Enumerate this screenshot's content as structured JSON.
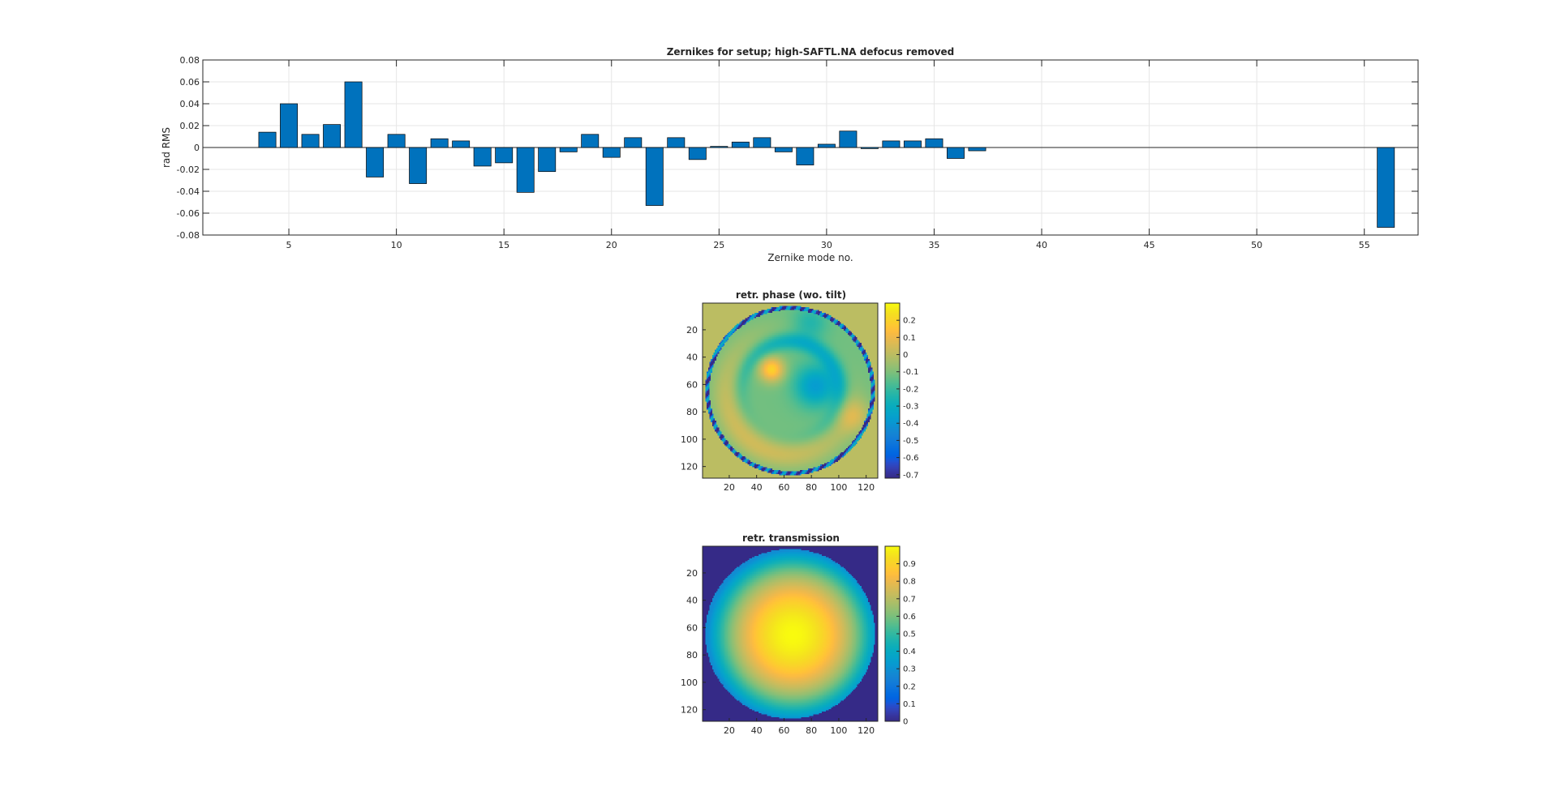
{
  "chart_data": [
    {
      "type": "bar",
      "title": "Zernikes for setup; high-SAFTL.NA defocus removed",
      "xlabel": "Zernike mode no.",
      "ylabel": "rad RMS",
      "xlim": [
        1,
        57.5
      ],
      "ylim": [
        -0.08,
        0.08
      ],
      "xticks": [
        5,
        10,
        15,
        20,
        25,
        30,
        35,
        40,
        45,
        50,
        55
      ],
      "yticks": [
        -0.08,
        -0.06,
        -0.04,
        -0.02,
        0,
        0.02,
        0.04,
        0.06,
        0.08
      ],
      "ytick_labels": [
        "-0.08",
        "-0.06",
        "-0.04",
        "-0.02",
        "0",
        "0.02",
        "0.04",
        "0.06",
        "0.08"
      ],
      "grid": true,
      "bar_color": "#0072BD",
      "x": [
        4,
        5,
        6,
        7,
        8,
        9,
        10,
        11,
        12,
        13,
        14,
        15,
        16,
        17,
        18,
        19,
        20,
        21,
        22,
        23,
        24,
        25,
        26,
        27,
        28,
        29,
        30,
        31,
        32,
        33,
        34,
        35,
        36,
        37,
        56
      ],
      "values": [
        0.014,
        0.04,
        0.012,
        0.021,
        0.06,
        -0.027,
        0.012,
        -0.033,
        0.008,
        0.006,
        -0.017,
        -0.014,
        -0.041,
        -0.022,
        -0.004,
        0.012,
        -0.009,
        0.009,
        -0.053,
        0.009,
        -0.011,
        0.001,
        0.005,
        0.009,
        -0.004,
        -0.016,
        0.003,
        0.015,
        -0.001,
        0.006,
        0.006,
        0.008,
        -0.01,
        -0.003,
        -0.073
      ]
    },
    {
      "type": "heatmap",
      "title": "retr. phase (wo. tilt)",
      "colormap": "parula",
      "xlim": [
        1,
        128
      ],
      "ylim": [
        1,
        128
      ],
      "xticks": [
        20,
        40,
        60,
        80,
        100,
        120
      ],
      "yticks": [
        20,
        40,
        60,
        80,
        100,
        120
      ],
      "clim": [
        -0.72,
        0.3
      ],
      "colorbar_ticks": [
        0.2,
        0.1,
        0,
        -0.1,
        -0.2,
        -0.3,
        -0.4,
        -0.5,
        -0.6,
        -0.7
      ],
      "colorbar_labels": [
        "0.2",
        "0.1",
        "0",
        "-0.1",
        "-0.2",
        "-0.3",
        "-0.4",
        "-0.5",
        "-0.6",
        "-0.7"
      ],
      "background_value": 0.0,
      "aperture_radius": 62
    },
    {
      "type": "heatmap",
      "title": "retr. transmission",
      "colormap": "parula",
      "xlim": [
        1,
        128
      ],
      "ylim": [
        1,
        128
      ],
      "xticks": [
        20,
        40,
        60,
        80,
        100,
        120
      ],
      "yticks": [
        20,
        40,
        60,
        80,
        100,
        120
      ],
      "clim": [
        0,
        1
      ],
      "colorbar_ticks": [
        0.9,
        0.8,
        0.7,
        0.6,
        0.5,
        0.4,
        0.3,
        0.2,
        0.1,
        0
      ],
      "colorbar_labels": [
        "0.9",
        "0.8",
        "0.7",
        "0.6",
        "0.5",
        "0.4",
        "0.3",
        "0.2",
        "0.1",
        "0"
      ],
      "background_value": 0.0,
      "aperture_radius": 62
    }
  ]
}
